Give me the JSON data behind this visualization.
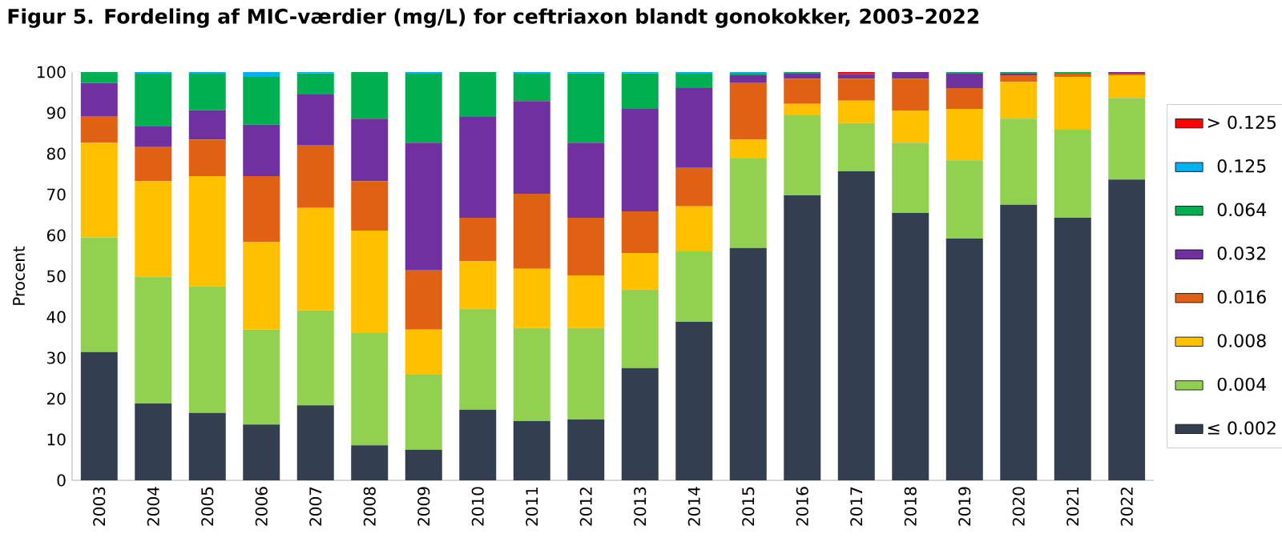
{
  "chart_data": {
    "type": "bar",
    "stacked": true,
    "title": "Figur 5. Fordeling af MIC-værdier (mg/L) for ceftriaxon blandt gonokokker, 2003–2022",
    "ylabel": "Procent",
    "categories": [
      "2003",
      "2004",
      "2005",
      "2006",
      "2007",
      "2008",
      "2009",
      "2010",
      "2011",
      "2012",
      "2013",
      "2014",
      "2015",
      "2016",
      "2017",
      "2018",
      "2019",
      "2020",
      "2021",
      "2022"
    ],
    "ylim": [
      0,
      100
    ],
    "yticks": [
      0,
      10,
      20,
      30,
      40,
      50,
      60,
      70,
      80,
      90,
      100
    ],
    "grid": false,
    "legend": "right",
    "series": [
      {
        "name": "≤ 0.002",
        "color": "#333f50",
        "values": [
          31.4,
          18.8,
          16.5,
          13.7,
          18.4,
          8.6,
          7.5,
          17.3,
          14.5,
          14.9,
          27.5,
          38.8,
          56.9,
          69.8,
          75.7,
          65.5,
          59.2,
          67.5,
          64.3,
          73.7
        ]
      },
      {
        "name": "0.004",
        "color": "#92d050",
        "values": [
          28.1,
          31.1,
          31.0,
          23.2,
          23.2,
          27.5,
          18.4,
          24.7,
          22.8,
          22.4,
          19.2,
          17.3,
          21.9,
          19.6,
          11.8,
          17.2,
          19.2,
          21.1,
          21.6,
          20.0
        ]
      },
      {
        "name": "0.008",
        "color": "#ffc000",
        "values": [
          23.2,
          23.4,
          27.0,
          21.5,
          25.1,
          25.1,
          11.0,
          11.7,
          14.5,
          12.9,
          9.0,
          11.0,
          4.7,
          2.8,
          5.5,
          7.9,
          12.6,
          9.0,
          12.9,
          5.5
        ]
      },
      {
        "name": "0.016",
        "color": "#e06014",
        "values": [
          6.5,
          8.3,
          9.0,
          16.1,
          15.3,
          12.1,
          14.5,
          10.6,
          18.4,
          14.1,
          10.2,
          9.4,
          13.8,
          6.2,
          5.4,
          7.8,
          5.1,
          1.6,
          0.8,
          0.4
        ]
      },
      {
        "name": "0.032",
        "color": "#7030a0",
        "values": [
          8.1,
          5.2,
          7.2,
          12.6,
          12.5,
          15.3,
          31.3,
          24.7,
          22.7,
          18.4,
          25.1,
          19.6,
          1.9,
          1.2,
          1.1,
          1.6,
          3.5,
          0.4,
          0,
          0.4
        ]
      },
      {
        "name": "0.064",
        "color": "#00b050",
        "values": [
          2.7,
          12.8,
          8.9,
          11.7,
          5.2,
          11.4,
          16.9,
          11.0,
          6.7,
          17.0,
          8.7,
          3.5,
          0.4,
          0.4,
          0,
          0,
          0.4,
          0.4,
          0.4,
          0
        ]
      },
      {
        "name": "0.125",
        "color": "#00b0f0",
        "values": [
          0,
          0.4,
          0.4,
          1.2,
          0.3,
          0,
          0.4,
          0,
          0.4,
          0.3,
          0.3,
          0.4,
          0.4,
          0,
          0,
          0,
          0,
          0,
          0,
          0
        ]
      },
      {
        "name": "> 0.125",
        "color": "#ff0000",
        "values": [
          0,
          0,
          0,
          0,
          0,
          0,
          0,
          0,
          0,
          0,
          0,
          0,
          0,
          0,
          0.5,
          0,
          0,
          0,
          0,
          0
        ]
      }
    ]
  }
}
